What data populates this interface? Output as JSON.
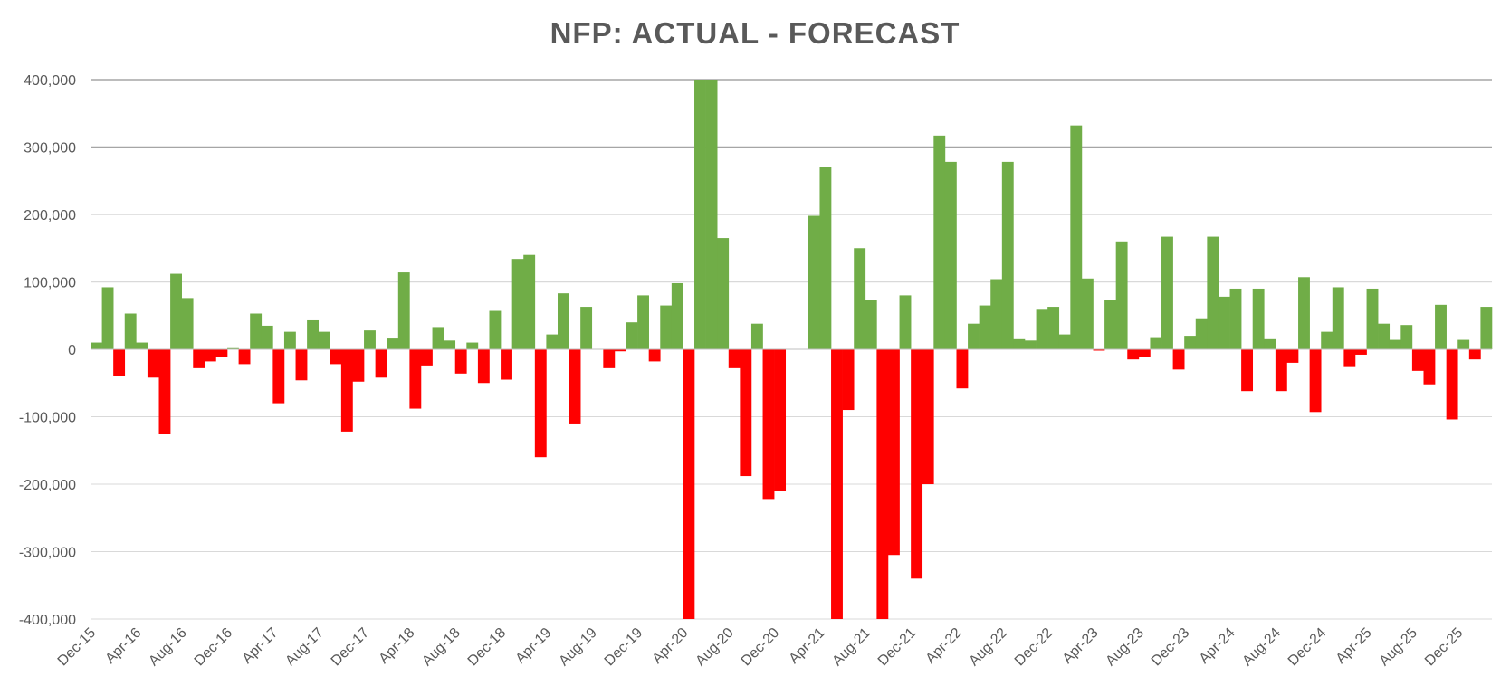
{
  "chart_data": {
    "type": "bar",
    "title": "NFP: ACTUAL - FORECAST",
    "xlabel": "",
    "ylabel": "",
    "ylim": [
      -400000,
      400000
    ],
    "y_ticks": [
      400000,
      300000,
      200000,
      100000,
      0,
      -100000,
      -200000,
      -300000,
      -400000
    ],
    "y_tick_labels": [
      "400,000",
      "300,000",
      "200,000",
      "100,000",
      "0",
      "-100,000",
      "-200,000",
      "-300,000",
      "-400,000"
    ],
    "x_tick_labels": [
      "Dec-15",
      "Apr-16",
      "Aug-16",
      "Dec-16",
      "Apr-17",
      "Aug-17",
      "Dec-17",
      "Apr-18",
      "Aug-18",
      "Dec-18",
      "Apr-19",
      "Aug-19",
      "Dec-19",
      "Apr-20",
      "Aug-20",
      "Dec-20",
      "Apr-21",
      "Aug-21",
      "Dec-21",
      "Apr-22",
      "Aug-22",
      "Dec-22",
      "Apr-23",
      "Aug-23",
      "Dec-23",
      "Apr-24",
      "Aug-24",
      "Dec-24",
      "Apr-25",
      "Aug-25",
      "Dec-25"
    ],
    "x_tick_every": 4,
    "grid": true,
    "positive_color": "#70AD47",
    "negative_color": "#FF0000",
    "series": [
      {
        "values": [
          10000,
          92000,
          -40000,
          53000,
          10000,
          -42000,
          -125000,
          112000,
          76000,
          -28000,
          -18000,
          -12000,
          3000,
          -22000,
          53000,
          35000,
          -80000,
          26000,
          -46000,
          43000,
          26000,
          -22000,
          -122000,
          -48000,
          28000,
          -42000,
          16000,
          114000,
          -88000,
          -24000,
          33000,
          13000,
          -36000,
          10000,
          -50000,
          57000,
          -45000,
          134000,
          140000,
          -160000,
          22000,
          83000,
          -110000,
          63000,
          0,
          -28000,
          -3000,
          40000,
          80000,
          -18000,
          65000,
          98000,
          -400000,
          400000,
          400000,
          165000,
          -28000,
          -188000,
          38000,
          -222000,
          -210000,
          0,
          0,
          198000,
          270000,
          -400000,
          -90000,
          150000,
          73000,
          -400000,
          -305000,
          80000,
          -340000,
          -200000,
          317000,
          278000,
          -58000,
          38000,
          65000,
          104000,
          278000,
          15000,
          13000,
          60000,
          63000,
          22000,
          332000,
          105000,
          -2000,
          73000,
          160000,
          -15000,
          -12000,
          18000,
          167000,
          -30000,
          20000,
          46000,
          167000,
          78000,
          90000,
          -62000,
          90000,
          15000,
          -62000,
          -20000,
          107000,
          -93000,
          26000,
          92000,
          -25000,
          -8000,
          90000,
          38000,
          14000,
          36000,
          -32000,
          -52000,
          66000,
          -104000,
          14000,
          -15000,
          63000
        ]
      }
    ]
  }
}
